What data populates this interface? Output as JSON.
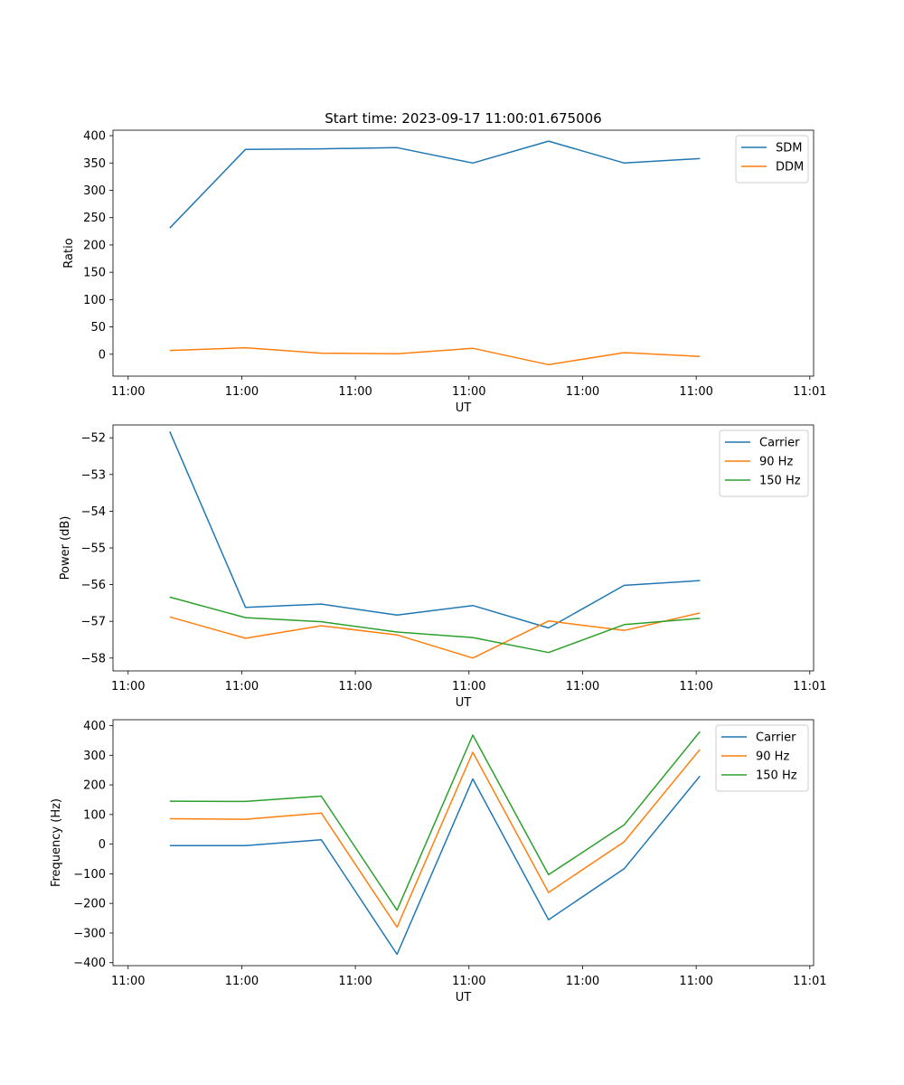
{
  "chart_data": [
    {
      "type": "line",
      "title": "Start time: 2023-09-17 11:00:01.675006",
      "xlabel": "UT",
      "ylabel": "Ratio",
      "xlim": [
        0.25,
        9.5
      ],
      "ylim": [
        -40,
        410
      ],
      "x": [
        1,
        2,
        3,
        4,
        5,
        6,
        7,
        8
      ],
      "xticks": [
        0.45,
        1.95,
        3.45,
        4.95,
        6.45,
        7.95,
        9.45
      ],
      "xtick_labels": [
        "11:00",
        "11:00",
        "11:00",
        "11:00",
        "11:00",
        "11:00",
        "11:01"
      ],
      "yticks": [
        0,
        50,
        100,
        150,
        200,
        250,
        300,
        350,
        400
      ],
      "ytick_labels": [
        "0",
        "50",
        "100",
        "150",
        "200",
        "250",
        "300",
        "350",
        "400"
      ],
      "legend_position": "top-right",
      "series": [
        {
          "name": "SDM",
          "color": "#1f77b4",
          "values": [
            231,
            375,
            376,
            378,
            350,
            390,
            350,
            358
          ]
        },
        {
          "name": "DDM",
          "color": "#ff7f0e",
          "values": [
            7,
            12,
            2,
            1,
            11,
            -19,
            3,
            -4
          ]
        }
      ]
    },
    {
      "type": "line",
      "title": "",
      "xlabel": "UT",
      "ylabel": "Power (dB)",
      "xlim": [
        0.25,
        9.5
      ],
      "ylim": [
        -58.35,
        -51.65
      ],
      "x": [
        1,
        2,
        3,
        4,
        5,
        6,
        7,
        8
      ],
      "xticks": [
        0.45,
        1.95,
        3.45,
        4.95,
        6.45,
        7.95,
        9.45
      ],
      "xtick_labels": [
        "11:00",
        "11:00",
        "11:00",
        "11:00",
        "11:00",
        "11:00",
        "11:01"
      ],
      "yticks": [
        -58,
        -57,
        -56,
        -55,
        -54,
        -53,
        -52
      ],
      "ytick_labels": [
        "−58",
        "−57",
        "−56",
        "−55",
        "−54",
        "−53",
        "−52"
      ],
      "legend_position": "top-right",
      "series": [
        {
          "name": "Carrier",
          "color": "#1f77b4",
          "values": [
            -51.83,
            -56.62,
            -56.53,
            -56.83,
            -56.57,
            -57.18,
            -56.02,
            -55.89
          ]
        },
        {
          "name": "90 Hz",
          "color": "#ff7f0e",
          "values": [
            -56.88,
            -57.46,
            -57.12,
            -57.37,
            -58.0,
            -56.99,
            -57.25,
            -56.77
          ]
        },
        {
          "name": "150 Hz",
          "color": "#2ca02c",
          "values": [
            -56.34,
            -56.9,
            -57.01,
            -57.29,
            -57.44,
            -57.85,
            -57.09,
            -56.92
          ]
        }
      ]
    },
    {
      "type": "line",
      "title": "",
      "xlabel": "UT",
      "ylabel": "Frequency (Hz)",
      "xlim": [
        0.25,
        9.5
      ],
      "ylim": [
        -410,
        420
      ],
      "x": [
        1,
        2,
        3,
        4,
        5,
        6,
        7,
        8
      ],
      "xticks": [
        0.45,
        1.95,
        3.45,
        4.95,
        6.45,
        7.95,
        9.45
      ],
      "xtick_labels": [
        "11:00",
        "11:00",
        "11:00",
        "11:00",
        "11:00",
        "11:00",
        "11:01"
      ],
      "yticks": [
        -400,
        -300,
        -200,
        -100,
        0,
        100,
        200,
        300,
        400
      ],
      "ytick_labels": [
        "−400",
        "−300",
        "−200",
        "−100",
        "0",
        "100",
        "200",
        "300",
        "400"
      ],
      "legend_position": "top-right",
      "series": [
        {
          "name": "Carrier",
          "color": "#1f77b4",
          "values": [
            -5,
            -5,
            15,
            -372,
            220,
            -255,
            -83,
            230
          ]
        },
        {
          "name": "90 Hz",
          "color": "#ff7f0e",
          "values": [
            86,
            84,
            105,
            -280,
            310,
            -163,
            8,
            320
          ]
        },
        {
          "name": "150 Hz",
          "color": "#2ca02c",
          "values": [
            145,
            144,
            162,
            -223,
            368,
            -103,
            65,
            380
          ]
        }
      ]
    }
  ]
}
